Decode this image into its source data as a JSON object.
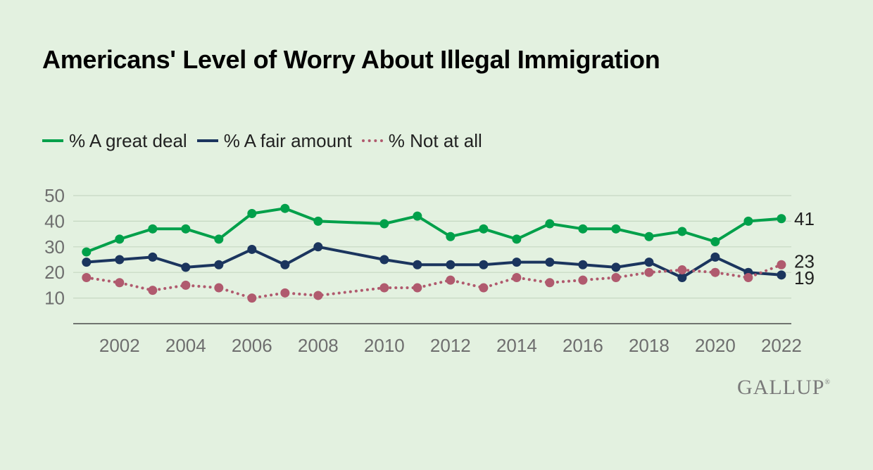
{
  "chart_data": {
    "type": "line",
    "title": "Americans' Level of Worry About Illegal Immigration",
    "x": [
      2001,
      2002,
      2003,
      2004,
      2005,
      2006,
      2007,
      2008,
      2010,
      2011,
      2012,
      2013,
      2014,
      2015,
      2016,
      2017,
      2018,
      2019,
      2020,
      2021,
      2022
    ],
    "series": [
      {
        "name": "% A great deal",
        "color": "#00a04a",
        "style": "solid",
        "values": [
          28,
          33,
          37,
          37,
          33,
          43,
          45,
          40,
          39,
          42,
          34,
          37,
          33,
          39,
          37,
          37,
          34,
          36,
          32,
          40,
          41
        ],
        "end_label": "41"
      },
      {
        "name": "% A fair amount",
        "color": "#1b355e",
        "style": "solid",
        "values": [
          24,
          25,
          26,
          22,
          23,
          29,
          23,
          30,
          25,
          23,
          23,
          23,
          24,
          24,
          23,
          22,
          24,
          18,
          26,
          20,
          19
        ],
        "end_label": "19"
      },
      {
        "name": "% Not at all",
        "color": "#b05a6e",
        "style": "dotted",
        "values": [
          18,
          16,
          13,
          15,
          14,
          10,
          12,
          11,
          14,
          14,
          17,
          14,
          18,
          16,
          17,
          18,
          20,
          21,
          20,
          18,
          23
        ],
        "end_label": "23"
      }
    ],
    "y_ticks": [
      "10",
      "20",
      "30",
      "40",
      "50"
    ],
    "x_ticks": [
      "2002",
      "2004",
      "2006",
      "2008",
      "2010",
      "2012",
      "2014",
      "2016",
      "2018",
      "2020",
      "2022"
    ],
    "xlim": [
      2000.6,
      2022.3
    ],
    "ylim": [
      0,
      50
    ],
    "xlabel": "",
    "ylabel": "",
    "grid": true,
    "legend_position": "top-left"
  },
  "logo": {
    "text": "GALLUP",
    "mark": "®"
  }
}
